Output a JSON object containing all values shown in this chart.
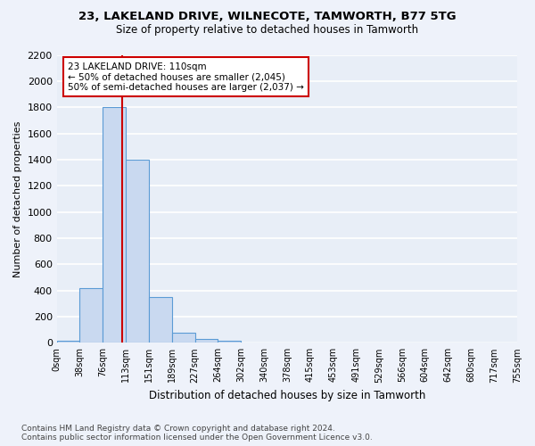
{
  "title1": "23, LAKELAND DRIVE, WILNECOTE, TAMWORTH, B77 5TG",
  "title2": "Size of property relative to detached houses in Tamworth",
  "xlabel": "Distribution of detached houses by size in Tamworth",
  "ylabel": "Number of detached properties",
  "bin_labels": [
    "0sqm",
    "38sqm",
    "76sqm",
    "113sqm",
    "151sqm",
    "189sqm",
    "227sqm",
    "264sqm",
    "302sqm",
    "340sqm",
    "378sqm",
    "415sqm",
    "453sqm",
    "491sqm",
    "529sqm",
    "566sqm",
    "604sqm",
    "642sqm",
    "680sqm",
    "717sqm",
    "755sqm"
  ],
  "bar_heights": [
    15,
    420,
    1800,
    1400,
    350,
    80,
    30,
    15,
    0,
    0,
    0,
    0,
    0,
    0,
    0,
    0,
    0,
    0,
    0,
    0
  ],
  "bar_color": "#c9d9f0",
  "bar_edge_color": "#5b9bd5",
  "vline_x": 2.85,
  "vline_color": "#cc0000",
  "annotation_text": "23 LAKELAND DRIVE: 110sqm\n← 50% of detached houses are smaller (2,045)\n50% of semi-detached houses are larger (2,037) →",
  "annotation_box_color": "#cc0000",
  "ylim_max": 2200,
  "yticks": [
    0,
    200,
    400,
    600,
    800,
    1000,
    1200,
    1400,
    1600,
    1800,
    2000,
    2200
  ],
  "footer": "Contains HM Land Registry data © Crown copyright and database right 2024.\nContains public sector information licensed under the Open Government Licence v3.0.",
  "bg_color": "#e8eef7",
  "fig_bg_color": "#eef2fa",
  "grid_color": "#ffffff"
}
